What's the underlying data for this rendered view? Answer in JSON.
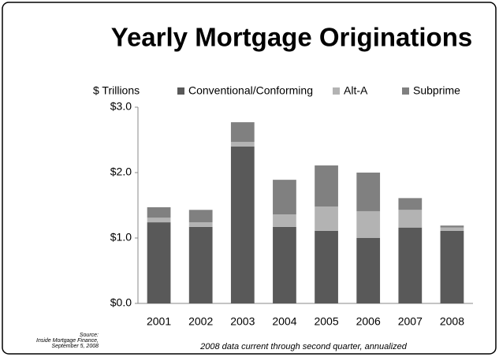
{
  "chart_data": {
    "type": "stacked_bar",
    "title": "Yearly Mortgage Originations",
    "y_axis_label": "$ Trillions",
    "categories": [
      "2001",
      "2002",
      "2003",
      "2004",
      "2005",
      "2006",
      "2007",
      "2008"
    ],
    "series": [
      {
        "name": "Conventional/Conforming",
        "color": "#595959",
        "values": [
          1.24,
          1.17,
          2.4,
          1.17,
          1.11,
          1.0,
          1.16,
          1.11
        ]
      },
      {
        "name": "Alt-A",
        "color": "#b3b3b3",
        "values": [
          0.07,
          0.07,
          0.07,
          0.19,
          0.37,
          0.41,
          0.27,
          0.05
        ]
      },
      {
        "name": "Subprime",
        "color": "#808080",
        "values": [
          0.16,
          0.19,
          0.3,
          0.53,
          0.63,
          0.59,
          0.18,
          0.03
        ]
      }
    ],
    "ylim": [
      0,
      3
    ],
    "yticks": [
      {
        "value": 0,
        "label": "$0.0"
      },
      {
        "value": 1,
        "label": "$1.0"
      },
      {
        "value": 2,
        "label": "$2.0"
      },
      {
        "value": 3,
        "label": "$3.0"
      }
    ],
    "legend": "top",
    "source": [
      "Source:",
      "Inside Mortgage Finance,",
      "September 5, 2008"
    ],
    "footnote": "2008 data current through second quarter, annualized"
  }
}
